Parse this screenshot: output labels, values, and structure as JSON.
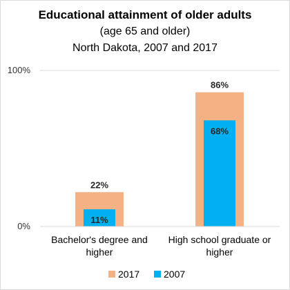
{
  "chart_data": {
    "type": "bar",
    "title": "Educational attainment of older adults",
    "subtitle": [
      "(age 65 and older)",
      "North Dakota, 2007 and 2017"
    ],
    "categories": [
      [
        "Bachelor's degree and",
        "higher"
      ],
      [
        "High school graduate or",
        "higher"
      ]
    ],
    "series": [
      {
        "name": "2017",
        "values": [
          22,
          86
        ],
        "labels": [
          "22%",
          "86%"
        ],
        "color": "#f4b183"
      },
      {
        "name": "2007",
        "values": [
          11,
          68
        ],
        "labels": [
          "11%",
          "68%"
        ],
        "color": "#00b0f0"
      }
    ],
    "yticks": [
      "0%",
      "100%"
    ],
    "ylim": [
      0,
      100
    ],
    "grid": true,
    "legend_position": "bottom"
  }
}
